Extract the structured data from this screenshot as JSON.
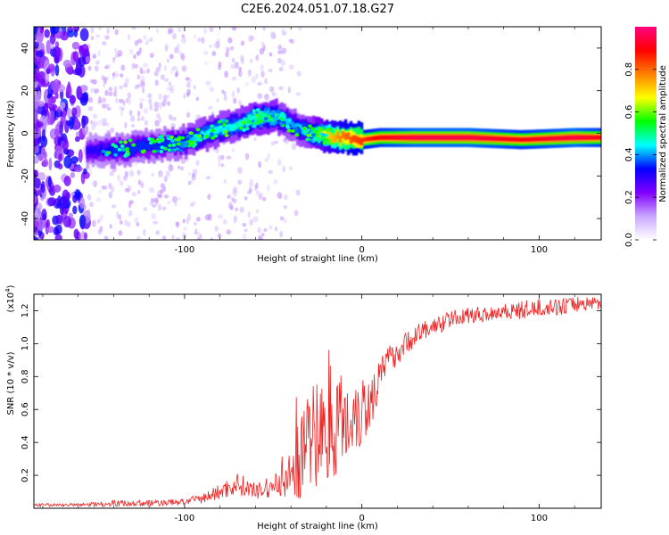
{
  "title": "C2E6.2024.051.07.18.G27",
  "chart_data": [
    {
      "type": "heatmap",
      "name": "spectrogram",
      "xlabel": "Height of straight line (km)",
      "ylabel": "Frequency (Hz)",
      "xlim": [
        -185,
        135
      ],
      "ylim": [
        -50,
        50
      ],
      "x_ticks": [
        -100,
        0,
        100
      ],
      "y_ticks": [
        -40,
        -20,
        0,
        20,
        40
      ],
      "colorbar": {
        "label": "Normalized spectral amplitude",
        "range": [
          0,
          1
        ],
        "ticks": [
          "0.0",
          "0.2",
          "0.4",
          "0.6",
          "0.8"
        ],
        "colors": [
          "#ffffff",
          "#c9a6ff",
          "#8000ff",
          "#0000ff",
          "#00ffff",
          "#00ff00",
          "#ffff00",
          "#ff8000",
          "#ff0000",
          "#ff0080"
        ]
      },
      "ridge": {
        "x": [
          -150,
          -140,
          -130,
          -120,
          -110,
          -100,
          -90,
          -80,
          -70,
          -60,
          -50,
          -45,
          -40,
          -30,
          -20,
          -10,
          0,
          10,
          30,
          60,
          90,
          120,
          135
        ],
        "y": [
          -8,
          -8,
          -7,
          -6,
          -5,
          -4,
          -1,
          2,
          4,
          7,
          8,
          7,
          4,
          0,
          -1,
          -2,
          -3,
          -2,
          -2,
          -2,
          -3,
          -2,
          -2
        ],
        "amplitude": [
          0.3,
          0.35,
          0.35,
          0.35,
          0.35,
          0.4,
          0.45,
          0.45,
          0.45,
          0.5,
          0.5,
          0.45,
          0.4,
          0.45,
          0.7,
          0.8,
          0.85,
          0.9,
          0.95,
          0.95,
          0.9,
          0.95,
          0.9
        ]
      }
    },
    {
      "type": "line",
      "name": "snr",
      "xlabel": "Height of straight line (km)",
      "ylabel": "SNR (10 * v/v)",
      "y_multiplier": "(x10",
      "y_multiplier_exp": "4",
      "y_multiplier_close": ")",
      "xlim": [
        -185,
        135
      ],
      "ylim": [
        0,
        1.3
      ],
      "x_ticks": [
        -100,
        0,
        100
      ],
      "y_ticks": [
        "0.2",
        "0.4",
        "0.6",
        "0.8",
        "1.0",
        "1.2"
      ],
      "color": "#ee2222",
      "series": {
        "x": [
          -185,
          -160,
          -140,
          -120,
          -100,
          -90,
          -80,
          -70,
          -60,
          -50,
          -40,
          -35,
          -30,
          -25,
          -20,
          -15,
          -10,
          -5,
          0,
          5,
          10,
          15,
          20,
          25,
          30,
          40,
          50,
          60,
          70,
          80,
          90,
          100,
          110,
          120,
          135
        ],
        "y": [
          0.02,
          0.02,
          0.03,
          0.03,
          0.04,
          0.06,
          0.1,
          0.15,
          0.1,
          0.13,
          0.2,
          0.3,
          0.4,
          0.45,
          0.5,
          0.55,
          0.5,
          0.6,
          0.6,
          0.65,
          0.8,
          0.9,
          0.95,
          1.0,
          1.05,
          1.1,
          1.15,
          1.17,
          1.18,
          1.2,
          1.2,
          1.22,
          1.22,
          1.24,
          1.25
        ],
        "noise": [
          0.01,
          0.01,
          0.02,
          0.02,
          0.02,
          0.03,
          0.05,
          0.07,
          0.05,
          0.07,
          0.15,
          0.25,
          0.3,
          0.35,
          0.4,
          0.35,
          0.3,
          0.28,
          0.25,
          0.2,
          0.1,
          0.09,
          0.08,
          0.07,
          0.07,
          0.06,
          0.05,
          0.05,
          0.05,
          0.05,
          0.06,
          0.05,
          0.05,
          0.05,
          0.04
        ]
      }
    }
  ]
}
